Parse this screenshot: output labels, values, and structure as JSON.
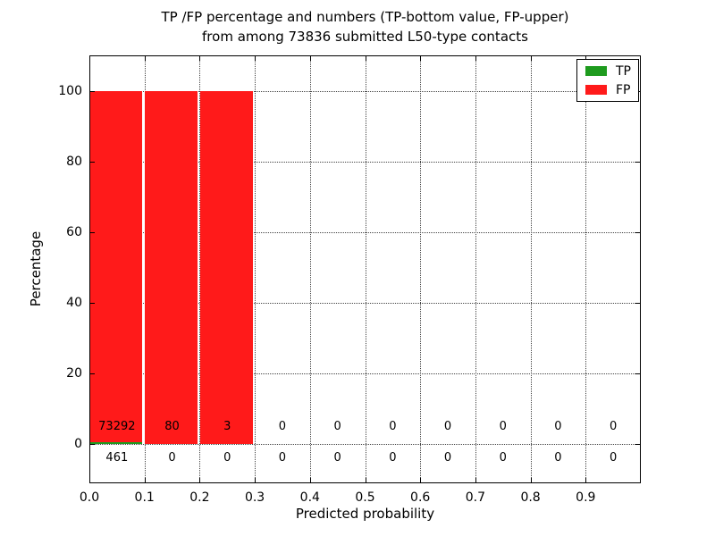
{
  "chart_data": {
    "type": "bar",
    "stacked": true,
    "title": "TP /FP percentage and numbers (TP-bottom value, FP-upper) from among 73836 submitted L50-type contacts",
    "title_line1": "TP /FP percentage and numbers (TP-bottom value, FP-upper)",
    "title_line2": "from among 73836 submitted L50-type contacts",
    "xlabel": "Predicted probability",
    "ylabel": "Percentage",
    "xlim": [
      0.0,
      1.0
    ],
    "ylim": [
      -11,
      110
    ],
    "grid": "dotted, both axes, major ticks",
    "legend_position": "upper right",
    "x_tick_labels": [
      "0.0",
      "0.1",
      "0.2",
      "0.3",
      "0.4",
      "0.5",
      "0.6",
      "0.7",
      "0.8",
      "0.9"
    ],
    "y_tick_values": [
      0,
      20,
      40,
      60,
      80,
      100
    ],
    "bin_start": 0.0,
    "bin_width": 0.1,
    "bin_count": 10,
    "total_submitted": 73836,
    "series": [
      {
        "name": "TP",
        "color": "#1e9b1e",
        "counts": [
          461,
          0,
          0,
          0,
          0,
          0,
          0,
          0,
          0,
          0
        ],
        "percentages": [
          0.63,
          0,
          0,
          0,
          0,
          0,
          0,
          0,
          0,
          0
        ]
      },
      {
        "name": "FP",
        "color": "#ff1a1a",
        "counts": [
          73292,
          80,
          3,
          0,
          0,
          0,
          0,
          0,
          0,
          0
        ],
        "percentages": [
          99.37,
          100,
          100,
          0,
          0,
          0,
          0,
          0,
          0,
          0
        ]
      }
    ],
    "count_label_rows": {
      "fp_row_y_value": 4.8,
      "tp_row_y_value": -3.9
    },
    "legend": {
      "entries": [
        {
          "label": "TP",
          "color": "#1e9b1e"
        },
        {
          "label": "FP",
          "color": "#ff1a1a"
        }
      ]
    }
  }
}
